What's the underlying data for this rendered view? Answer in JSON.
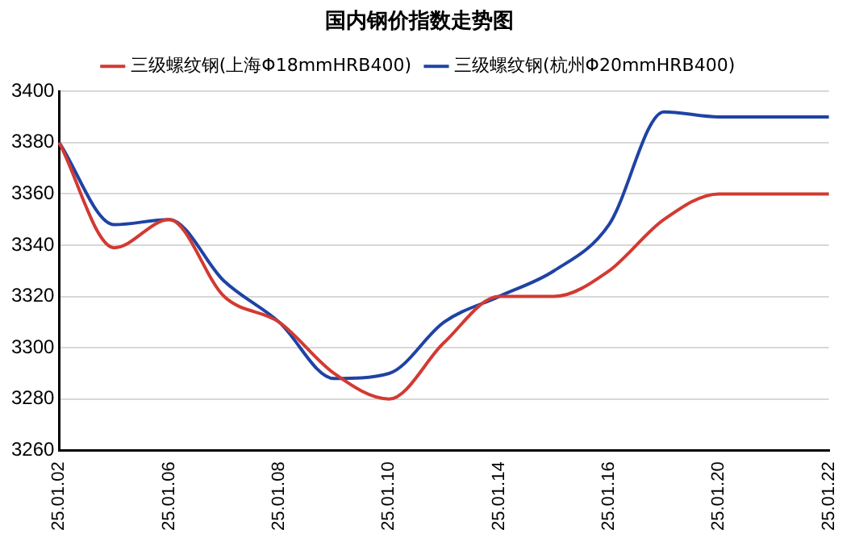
{
  "chart_data": {
    "type": "line",
    "title": "国内钢价指数走势图",
    "categories": [
      "25.01.02",
      null,
      "25.01.06",
      null,
      "25.01.08",
      null,
      "25.01.10",
      null,
      "25.01.14",
      null,
      "25.01.16",
      null,
      "25.01.20",
      null,
      "25.01.22"
    ],
    "series": [
      {
        "name": "三级螺纹钢(上海Φ18mmHRB400)",
        "color": "#d23a32",
        "values": [
          3380,
          3339,
          3350,
          3320,
          3310,
          3290,
          3280,
          3302,
          3320,
          3320,
          3330,
          3350,
          3360,
          3360,
          3360
        ]
      },
      {
        "name": "三级螺纹钢(杭州Φ20mmHRB400)",
        "color": "#1f43a4",
        "values": [
          3380,
          3348,
          3350,
          3326,
          3310,
          3288,
          3290,
          3310,
          3320,
          3330,
          3348,
          3392,
          3390,
          3390,
          3390
        ]
      }
    ],
    "ylim": [
      3260,
      3400
    ],
    "yticks": [
      3260,
      3280,
      3300,
      3320,
      3340,
      3360,
      3380,
      3400
    ],
    "grid": "y",
    "legend": "top",
    "marker": "none",
    "line_style": "solid"
  }
}
